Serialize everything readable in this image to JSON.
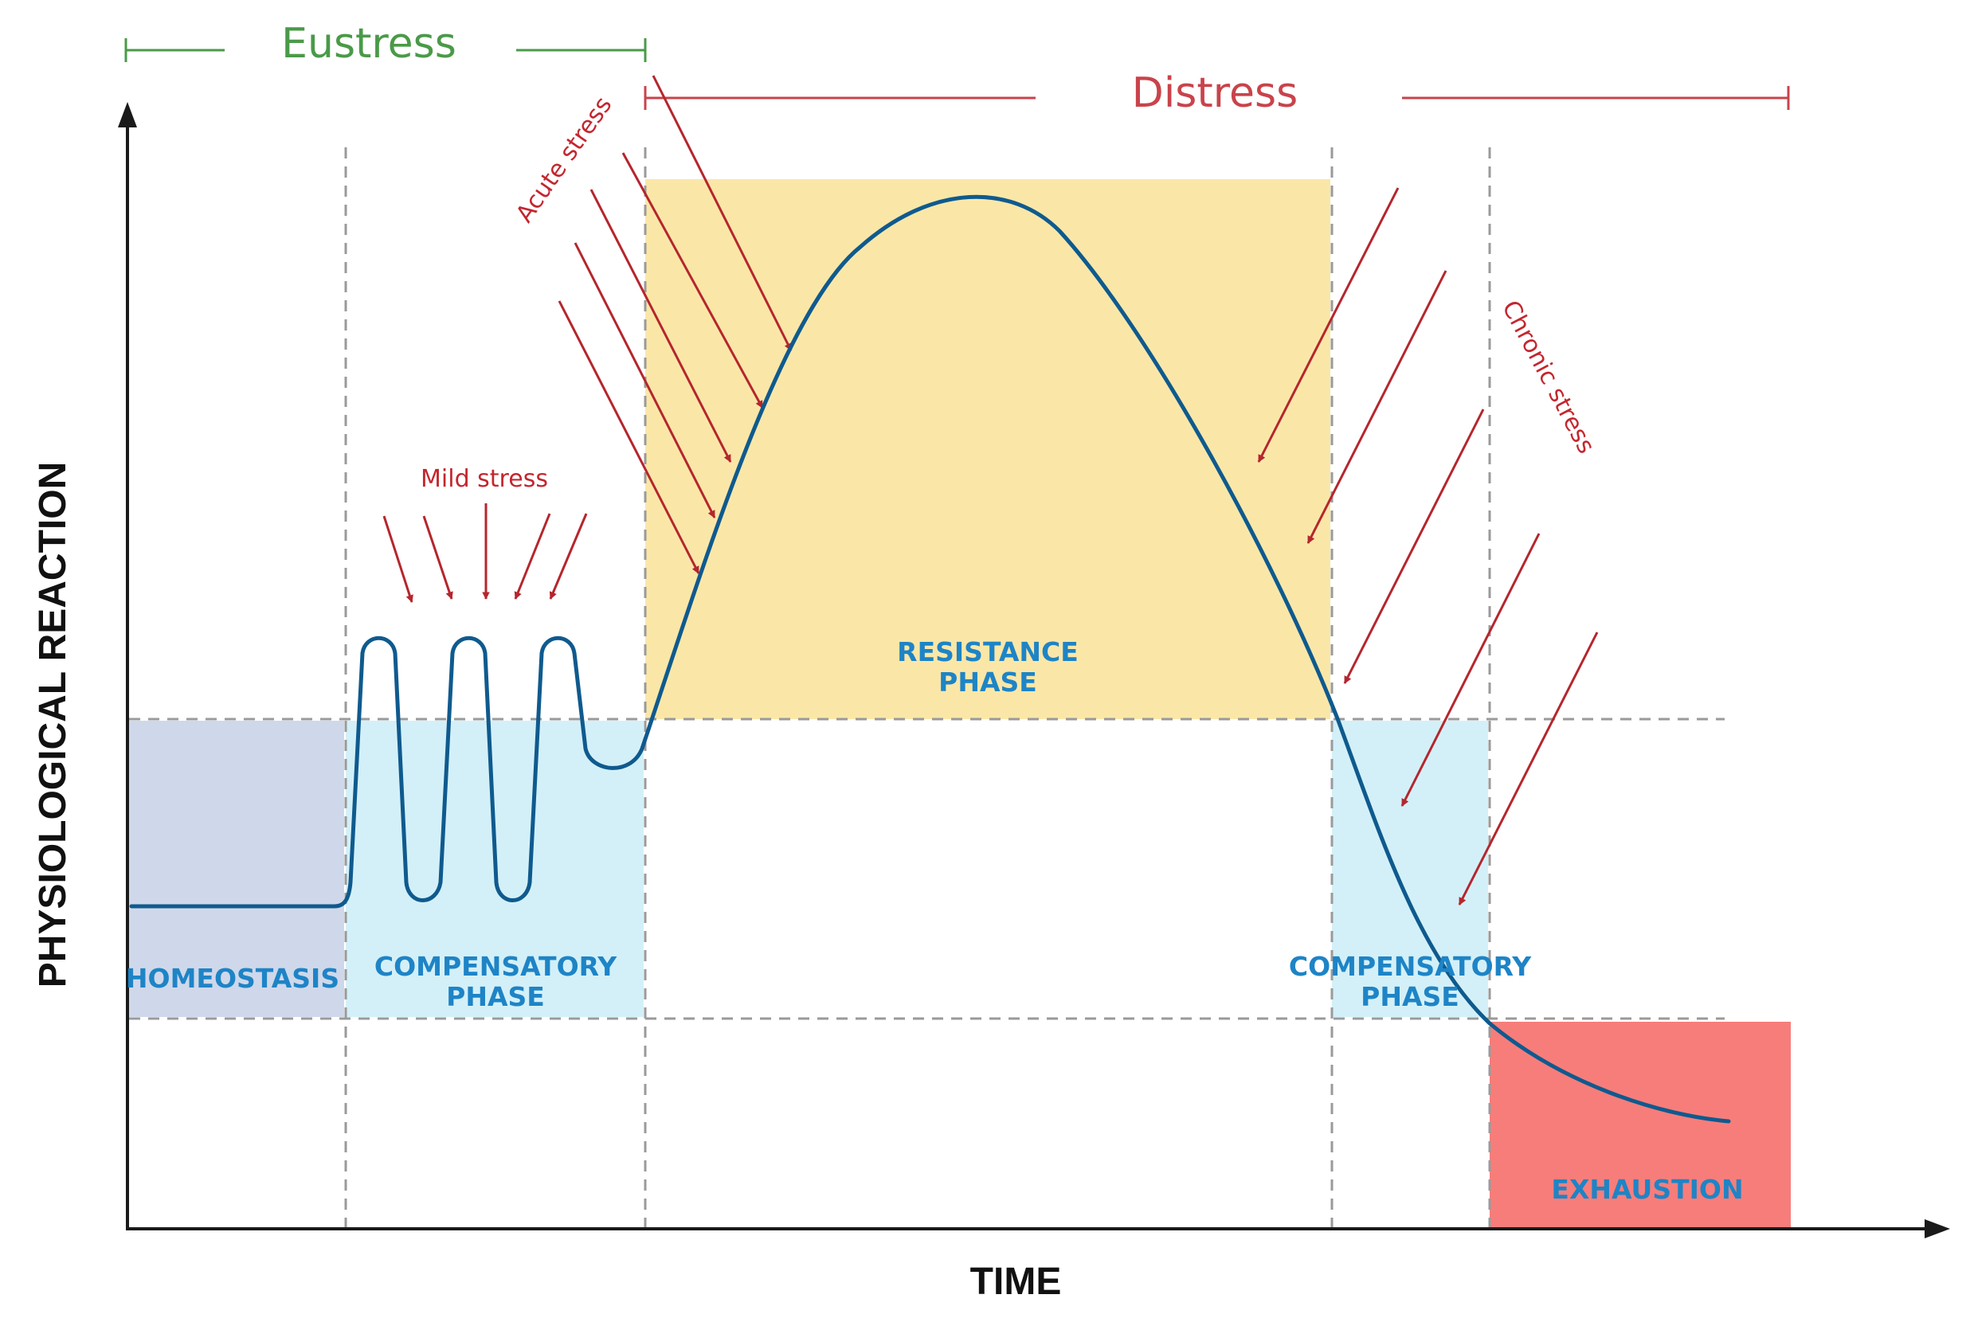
{
  "axes": {
    "x_label": "TIME",
    "y_label": "PHYSIOLOGICAL REACTION"
  },
  "ranges": {
    "eustress": {
      "label": "Eustress",
      "color": "#4a9a48"
    },
    "distress": {
      "label": "Distress",
      "color": "#c9434b"
    }
  },
  "stressors": {
    "mild": "Mild stress",
    "acute": "Acute stress",
    "chronic": "Chronic stress",
    "arrow_color": "#b5262d"
  },
  "phases": {
    "homeostasis": {
      "label": "HOMEOSTASIS",
      "color": "#cfd8ea"
    },
    "compensatory_1": {
      "line1": "COMPENSATORY",
      "line2": "PHASE",
      "color": "#d3f0f8"
    },
    "resistance": {
      "line1": "RESISTANCE",
      "line2": "PHASE",
      "color": "#fae7a8"
    },
    "compensatory_2": {
      "line1": "COMPENSATORY",
      "line2": "PHASE",
      "color": "#d3f0f8"
    },
    "exhaustion": {
      "label": "EXHAUSTION",
      "color": "#f77d7b"
    }
  },
  "curve_color": "#0f5a8e",
  "label_color": "#1e84c6"
}
